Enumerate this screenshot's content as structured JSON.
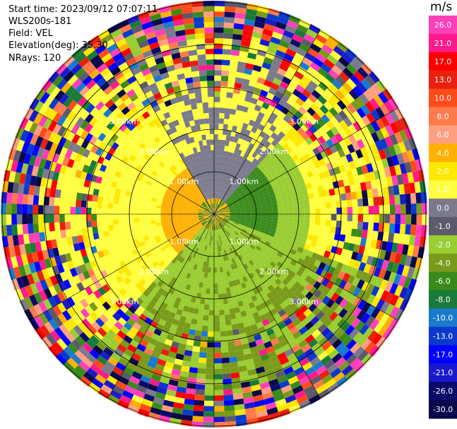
{
  "header": {
    "start_time": "Start time: 2023/09/12 07:07:11",
    "instrument": "WLS200s-181",
    "field": "Field: VEL",
    "elevation": "Elevation(deg): 35.30",
    "nrays": "NRays: 120"
  },
  "colorbar": {
    "unit": "m/s",
    "ticks": [
      "26.0",
      "21.0",
      "17.0",
      "13.0",
      "10.0",
      "8.0",
      "6.0",
      "4.0",
      "2.0",
      "1.0",
      "0.0",
      "-1.0",
      "-2.0",
      "-4.0",
      "-6.0",
      "-8.0",
      "-10.0",
      "-13.0",
      "-17.0",
      "-21.0",
      "-26.0",
      "-30.0"
    ],
    "colors": [
      "#ff3fb8",
      "#ff1a8c",
      "#ff0000",
      "#e8200c",
      "#ff4a1a",
      "#ff7a4a",
      "#ff9f80",
      "#ffb000",
      "#ffe800",
      "#ffff40",
      "#7a7a8c",
      "#5a5a6a",
      "#9acd32",
      "#7a9a1a",
      "#3a8a1a",
      "#1a7a3a",
      "#1a7acd",
      "#0a3acd",
      "#0000ff",
      "#1a1acd",
      "#0a0a6a",
      "#08084a"
    ]
  },
  "chart_data": {
    "type": "heatmap",
    "subtype": "ppi-radial-velocity",
    "field": "VEL",
    "units": "m/s",
    "nrays": 120,
    "elevation_deg": 35.3,
    "range_ring_labels": [
      "1.00km",
      "2.00km",
      "3.00km"
    ],
    "vmin": -30.0,
    "vmax": 26.0
  }
}
